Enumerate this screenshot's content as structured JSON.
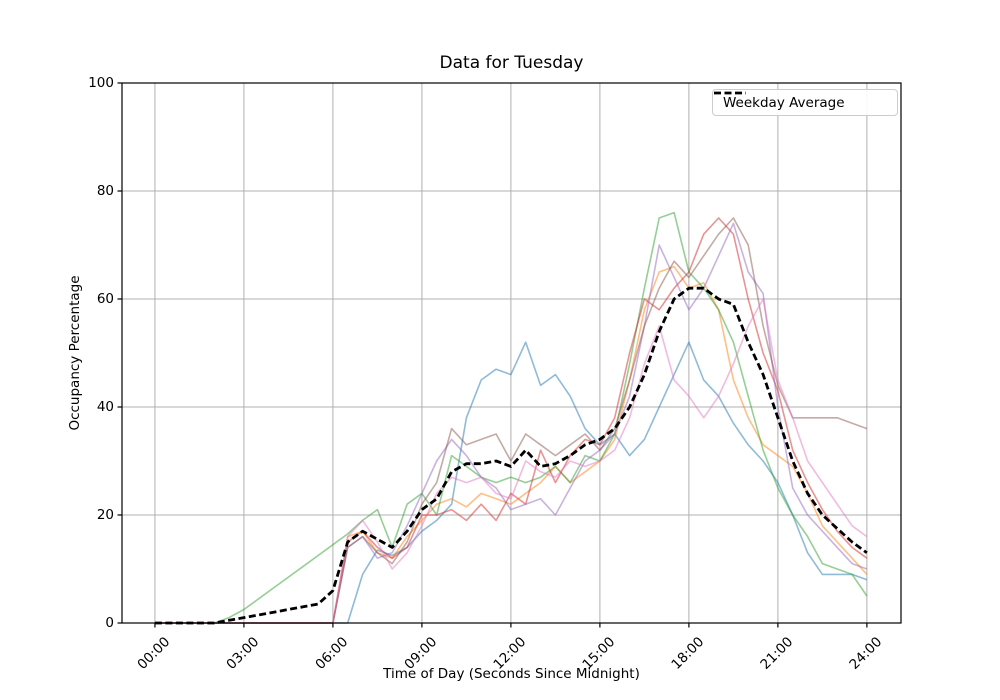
{
  "figure": {
    "background": "#ffffff",
    "grid_color": "#b0b0b0",
    "spine_color": "#000000"
  },
  "chart_data": {
    "type": "line",
    "title": "Data for Tuesday",
    "xlabel": "Time of Day (Seconds Since Midnight)",
    "ylabel": "Occupancy Percentage",
    "grid": true,
    "legend_position": "upper right",
    "legend": [
      {
        "label": "Weekday Average",
        "color": "#000000",
        "style": "dashed"
      }
    ],
    "xlim_hours": [
      -1.11,
      25.15
    ],
    "ylim": [
      0,
      100
    ],
    "x_ticks": [
      {
        "hour": 0,
        "label": "00:00"
      },
      {
        "hour": 3,
        "label": "03:00"
      },
      {
        "hour": 6,
        "label": "06:00"
      },
      {
        "hour": 9,
        "label": "09:00"
      },
      {
        "hour": 12,
        "label": "12:00"
      },
      {
        "hour": 15,
        "label": "15:00"
      },
      {
        "hour": 18,
        "label": "18:00"
      },
      {
        "hour": 21,
        "label": "21:00"
      },
      {
        "hour": 24,
        "label": "24:00"
      }
    ],
    "y_ticks": [
      {
        "value": 0,
        "label": "0"
      },
      {
        "value": 20,
        "label": "20"
      },
      {
        "value": 40,
        "label": "40"
      },
      {
        "value": 60,
        "label": "60"
      },
      {
        "value": 80,
        "label": "80"
      },
      {
        "value": 100,
        "label": "100"
      }
    ],
    "x_hours": [
      0,
      0.5,
      1,
      1.5,
      2,
      2.5,
      3,
      3.5,
      4,
      4.5,
      5,
      5.5,
      6,
      6.5,
      7,
      7.5,
      8,
      8.5,
      9,
      9.5,
      10,
      10.5,
      11,
      11.5,
      12,
      12.5,
      13,
      13.5,
      14,
      14.5,
      15,
      15.5,
      16,
      16.5,
      17,
      17.5,
      18,
      18.5,
      19,
      19.5,
      20,
      20.5,
      21,
      21.5,
      22,
      22.5,
      23,
      23.5,
      24
    ],
    "series": [
      {
        "name": "tuesday-trace-blue",
        "color": "#1f77b4",
        "alpha": 0.5,
        "width": 1.6,
        "dash": null,
        "values": [
          0,
          0,
          0,
          0,
          0,
          0,
          0,
          0,
          0,
          0,
          0,
          0,
          0,
          0,
          9,
          13.5,
          12.5,
          14,
          17,
          19,
          22,
          38,
          45,
          47,
          46,
          52,
          44,
          46,
          42,
          36,
          33,
          35,
          31,
          34,
          40,
          46,
          52,
          45,
          42,
          37,
          33,
          30,
          26,
          20,
          13,
          9,
          9,
          9,
          8
        ]
      },
      {
        "name": "tuesday-trace-orange",
        "color": "#ff7f0e",
        "alpha": 0.5,
        "width": 1.6,
        "dash": null,
        "values": [
          0,
          0,
          0,
          0,
          0,
          0,
          0,
          0,
          0,
          0,
          0,
          0,
          0,
          16,
          17,
          13,
          12,
          16,
          19,
          22,
          23,
          21.5,
          24,
          23,
          22,
          24,
          26,
          29,
          26,
          28,
          30,
          34,
          45,
          58,
          65,
          66,
          62,
          63,
          58,
          45,
          38,
          33,
          31,
          29,
          24,
          18,
          15,
          12,
          9
        ]
      },
      {
        "name": "tuesday-trace-green",
        "color": "#2ca02c",
        "alpha": 0.5,
        "width": 1.6,
        "dash": null,
        "values": [
          0,
          0,
          0,
          0,
          0,
          1,
          2.5,
          4.5,
          6.5,
          8.5,
          10.5,
          12.5,
          14.5,
          16.5,
          19,
          21,
          14,
          22,
          24,
          20,
          31,
          29,
          27,
          26,
          27,
          26,
          27,
          29,
          26,
          31,
          30,
          35,
          48,
          62,
          75,
          76,
          65,
          62,
          58,
          52,
          42,
          32,
          25,
          20,
          16,
          11,
          10,
          9,
          5
        ]
      },
      {
        "name": "tuesday-trace-red",
        "color": "#d62728",
        "alpha": 0.5,
        "width": 1.6,
        "dash": null,
        "values": [
          0,
          0,
          0,
          0,
          0,
          0,
          0,
          0,
          0,
          0,
          0,
          0,
          0,
          15,
          17,
          14,
          12,
          14,
          20,
          20,
          21,
          19,
          22,
          19,
          24,
          22,
          32,
          26,
          31,
          34,
          33,
          38,
          50,
          60,
          58,
          62,
          65,
          72,
          75,
          72,
          60,
          50,
          43,
          32,
          26,
          21,
          17,
          14,
          12
        ]
      },
      {
        "name": "tuesday-trace-purple",
        "color": "#9467bd",
        "alpha": 0.5,
        "width": 1.6,
        "dash": null,
        "values": [
          0,
          0,
          0,
          0,
          0,
          0,
          0,
          0,
          0,
          0,
          0,
          0,
          0,
          14,
          16,
          12,
          13,
          18,
          24,
          30,
          34,
          31,
          27,
          25,
          21,
          22,
          23,
          20,
          25,
          30,
          32,
          35,
          42,
          55,
          70,
          64,
          58,
          62,
          68,
          74,
          65,
          61,
          40,
          25,
          20,
          17,
          14,
          11,
          10
        ]
      },
      {
        "name": "tuesday-trace-brown",
        "color": "#8c564b",
        "alpha": 0.5,
        "width": 1.6,
        "dash": null,
        "values": [
          0,
          0,
          0,
          0,
          0,
          0,
          0,
          0,
          0,
          0,
          0,
          0,
          0,
          14,
          16,
          13,
          11,
          15,
          22,
          26,
          36,
          33,
          34,
          35,
          30,
          35,
          33,
          31,
          33,
          35,
          32,
          36,
          45,
          55,
          62,
          67,
          64,
          68,
          72,
          75,
          70,
          55,
          44,
          38,
          38,
          38,
          38,
          37,
          36
        ]
      },
      {
        "name": "tuesday-trace-pink",
        "color": "#e377c2",
        "alpha": 0.5,
        "width": 1.6,
        "dash": null,
        "values": [
          0,
          0,
          0,
          0,
          0,
          0,
          0,
          0,
          0,
          0,
          0,
          0,
          0,
          16,
          19,
          15,
          10,
          13,
          18,
          24,
          27,
          26,
          27,
          24,
          23,
          30,
          28,
          27,
          30,
          29,
          30,
          32,
          38,
          48,
          55,
          45,
          42,
          38,
          42,
          48,
          55,
          60,
          45,
          38,
          30,
          26,
          22,
          18,
          16
        ]
      },
      {
        "name": "weekday-average",
        "label": "Weekday Average",
        "color": "#000000",
        "alpha": 1,
        "width": 2.8,
        "dash": "7 3.5",
        "values": [
          0,
          0,
          0,
          0,
          0,
          0.5,
          1,
          1.5,
          2,
          2.5,
          3,
          3.5,
          6,
          15,
          17,
          15.5,
          14,
          17,
          21,
          23,
          28,
          29.5,
          29.5,
          30,
          29,
          32,
          29,
          29.5,
          31,
          33,
          34,
          36,
          40,
          46,
          54,
          60,
          62,
          62,
          60,
          59,
          52,
          46,
          38,
          30,
          24,
          20,
          17.5,
          15,
          13
        ]
      }
    ]
  }
}
